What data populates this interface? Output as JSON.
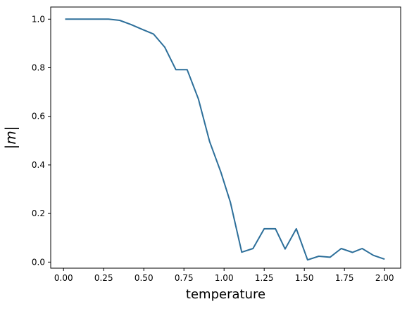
{
  "chart_data": {
    "type": "line",
    "title": "",
    "xlabel": "temperature",
    "ylabel": "|m|",
    "xlim": [
      -0.08,
      2.1
    ],
    "ylim": [
      -0.025,
      1.05
    ],
    "grid": false,
    "legend": "none",
    "x_ticks": [
      0.0,
      0.25,
      0.5,
      0.75,
      1.0,
      1.25,
      1.5,
      1.75,
      2.0
    ],
    "x_tick_labels": [
      "0.00",
      "0.25",
      "0.50",
      "0.75",
      "1.00",
      "1.25",
      "1.50",
      "1.75",
      "2.00"
    ],
    "y_ticks": [
      0.0,
      0.2,
      0.4,
      0.6,
      0.8,
      1.0
    ],
    "y_tick_labels": [
      "0.0",
      "0.2",
      "0.4",
      "0.6",
      "0.8",
      "1.0"
    ],
    "series": [
      {
        "color": "#2d6f9a",
        "x": [
          0.01,
          0.07,
          0.14,
          0.21,
          0.28,
          0.35,
          0.42,
          0.49,
          0.56,
          0.63,
          0.7,
          0.77,
          0.84,
          0.91,
          0.98,
          1.04,
          1.11,
          1.18,
          1.25,
          1.32,
          1.38,
          1.45,
          1.52,
          1.59,
          1.66,
          1.73,
          1.8,
          1.86,
          1.93,
          2.0
        ],
        "y": [
          1.0,
          1.0,
          1.0,
          1.0,
          1.0,
          0.995,
          0.978,
          0.958,
          0.939,
          0.885,
          0.792,
          0.792,
          0.672,
          0.496,
          0.37,
          0.245,
          0.041,
          0.056,
          0.137,
          0.137,
          0.054,
          0.137,
          0.009,
          0.024,
          0.02,
          0.056,
          0.04,
          0.056,
          0.028,
          0.012
        ]
      }
    ]
  }
}
